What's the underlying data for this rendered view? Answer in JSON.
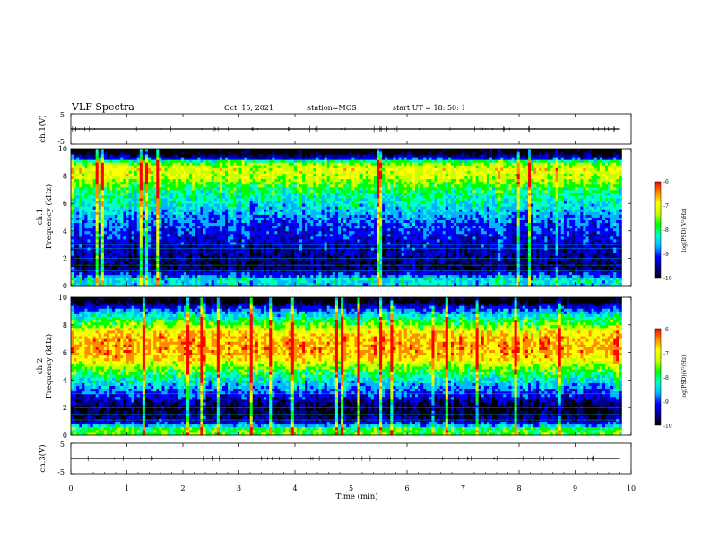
{
  "header": {
    "title": "VLF Spectra",
    "date": "Oct. 15, 2021",
    "station": "station=MOS",
    "start_ut": "start UT = 18: 50: 1"
  },
  "chart_data": [
    {
      "type": "line",
      "name": "ch1-waveform",
      "ylabel": "ch.1(V)",
      "ylim": [
        -5,
        5
      ],
      "yticks": [
        "5",
        "-5"
      ],
      "x": [
        0,
        2,
        4,
        6,
        8,
        9.8
      ],
      "values": [
        0,
        0,
        0,
        0,
        0,
        0
      ]
    },
    {
      "type": "heatmap",
      "name": "ch1-spectrogram",
      "ylabel": "ch.1",
      "ylabel2": "Frequency (kHz)",
      "ylim": [
        0,
        10
      ],
      "yticks": [
        "0",
        "2",
        "4",
        "6",
        "8",
        "10"
      ],
      "xlim": [
        0,
        10
      ],
      "colorbar": {
        "label": "log(PSD)(V²/Hz)",
        "ticks": [
          "-6",
          "-7",
          "-8",
          "-9",
          "-10"
        ],
        "range": [
          -10,
          -6
        ]
      },
      "band_profile": [
        [
          0,
          -8.5
        ],
        [
          0.5,
          -8.3
        ],
        [
          1,
          -9.3
        ],
        [
          1.5,
          -9.6
        ],
        [
          2,
          -9.4
        ],
        [
          3,
          -9.2
        ],
        [
          4,
          -9.0
        ],
        [
          5,
          -8.7
        ],
        [
          6,
          -8.3
        ],
        [
          7,
          -8.0
        ],
        [
          7.5,
          -7.6
        ],
        [
          8,
          -7.3
        ],
        [
          8.5,
          -7.2
        ],
        [
          9,
          -7.6
        ],
        [
          9.3,
          -9.0
        ],
        [
          9.7,
          -9.9
        ],
        [
          10,
          -10
        ]
      ]
    },
    {
      "type": "heatmap",
      "name": "ch2-spectrogram",
      "ylabel": "ch.2",
      "ylabel2": "Frequency (kHz)",
      "ylim": [
        0,
        10
      ],
      "yticks": [
        "0",
        "2",
        "4",
        "6",
        "8",
        "10"
      ],
      "xlim": [
        0,
        10
      ],
      "colorbar": {
        "label": "log(PSD)(V²/Hz)",
        "ticks": [
          "-6",
          "-7",
          "-8",
          "-9",
          "-10"
        ],
        "range": [
          -10,
          -6
        ]
      },
      "band_profile": [
        [
          0,
          -7.7
        ],
        [
          0.5,
          -7.9
        ],
        [
          1,
          -9.3
        ],
        [
          1.5,
          -9.6
        ],
        [
          2,
          -9.7
        ],
        [
          3,
          -9.0
        ],
        [
          4,
          -8.3
        ],
        [
          5,
          -7.5
        ],
        [
          5.5,
          -7.0
        ],
        [
          6,
          -6.7
        ],
        [
          7,
          -6.75
        ],
        [
          7.5,
          -7.0
        ],
        [
          8,
          -7.6
        ],
        [
          8.7,
          -8.3
        ],
        [
          9.3,
          -9.1
        ],
        [
          9.7,
          -9.8
        ],
        [
          10,
          -10
        ]
      ]
    },
    {
      "type": "line",
      "name": "ch3-waveform",
      "ylabel": "ch.3(V)",
      "ylim": [
        -5,
        5
      ],
      "yticks": [
        "5",
        "-5"
      ],
      "x": [
        0,
        2,
        4,
        6,
        8,
        9.8
      ],
      "values": [
        0,
        0,
        0,
        0,
        0,
        0
      ]
    }
  ],
  "x_axis": {
    "label": "Time (min)",
    "ticks": [
      "0",
      "1",
      "2",
      "3",
      "4",
      "5",
      "6",
      "7",
      "8",
      "9",
      "10"
    ],
    "range": [
      0,
      10
    ],
    "data_end": 9.83
  },
  "colors": {
    "colormap": [
      "#000000",
      "#00008b",
      "#0000ff",
      "#00b4ff",
      "#00ffc8",
      "#00ff00",
      "#c8ff00",
      "#ffff00",
      "#ff8c00",
      "#ff0000"
    ]
  }
}
